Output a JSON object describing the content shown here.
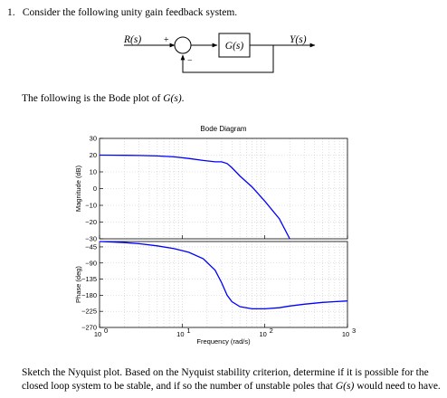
{
  "question": {
    "number": "1.",
    "intro": "Consider the following unity gain feedback system.",
    "bode_intro_prefix": "The following is the Bode plot of ",
    "bode_intro_math": "G(s)",
    "bode_intro_suffix": ".",
    "task_line1": "Sketch the Nyquist plot. Based on the Nyquist stability criterion, determine if it is possible for the",
    "task_line2_prefix": "closed loop system to be stable, and if so the number of unstable poles that ",
    "task_line2_math": "G(s)",
    "task_line2_suffix": " would need to have."
  },
  "block_diagram": {
    "input_label": "R(s)",
    "plus_sign": "+",
    "minus_sign": "−",
    "plant_label": "G(s)",
    "output_label": "Y(s)"
  },
  "chart_data": {
    "type": "line",
    "title": "Bode Diagram",
    "xlabel": "Frequency  (rad/s)",
    "xscale": "log",
    "xlim": [
      1,
      1000
    ],
    "x_ticks": [
      "10",
      "10",
      "10",
      "10"
    ],
    "x_tick_exponents": [
      "0",
      "1",
      "2",
      "3"
    ],
    "grid": true,
    "color": "#0000ff",
    "panels": [
      {
        "name": "magnitude",
        "ylabel": "Magnitude (dB)",
        "ylim": [
          -30,
          30
        ],
        "y_ticks": [
          "30",
          "20",
          "10",
          "0",
          "−10",
          "−20",
          "−30"
        ],
        "x": [
          1,
          2,
          3,
          5,
          8,
          12,
          18,
          25,
          30,
          35,
          40,
          50,
          70,
          100,
          150,
          200
        ],
        "y": [
          20,
          19.9,
          19.8,
          19.5,
          19,
          18,
          16.8,
          16,
          16,
          15,
          12.5,
          7.5,
          1,
          -7.5,
          -18,
          -30
        ]
      },
      {
        "name": "phase",
        "ylabel": "Phase (deg)",
        "ylim": [
          -270,
          -30
        ],
        "y_ticks": [
          "−45",
          "−90",
          "−135",
          "−180",
          "−225",
          "−270"
        ],
        "x": [
          1,
          2,
          3,
          5,
          8,
          12,
          18,
          25,
          30,
          35,
          40,
          50,
          70,
          100,
          150,
          200,
          300,
          500,
          700,
          1000
        ],
        "y": [
          -30,
          -33,
          -36,
          -42,
          -50,
          -60,
          -78,
          -110,
          -145,
          -180,
          -198,
          -212,
          -218,
          -218,
          -215,
          -210,
          -205,
          -200,
          -198,
          -196
        ]
      }
    ]
  }
}
